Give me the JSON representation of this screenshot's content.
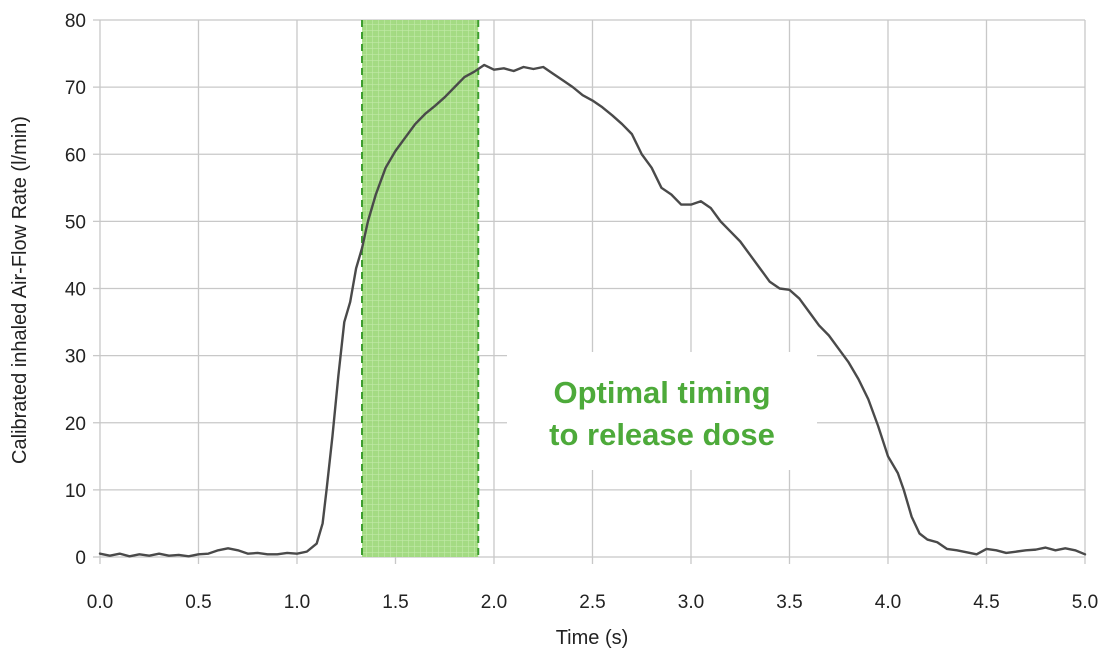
{
  "chart_data": {
    "type": "line",
    "title": "",
    "xlabel": "Time (s)",
    "ylabel": "Calibrated inhaled Air-Flow Rate (l/min)",
    "xlim": [
      0,
      5
    ],
    "ylim": [
      0,
      80
    ],
    "x_ticks": [
      "0.0",
      "0.5",
      "1.0",
      "1.5",
      "2.0",
      "2.5",
      "3.0",
      "3.5",
      "4.0",
      "4.5",
      "5.0"
    ],
    "y_ticks": [
      "0",
      "10",
      "20",
      "30",
      "40",
      "50",
      "60",
      "70",
      "80"
    ],
    "grid": true,
    "highlight_band": {
      "x_start": 1.33,
      "x_end": 1.92,
      "color": "#8fd16a"
    },
    "annotation": {
      "lines": [
        "Optimal timing",
        "to release dose"
      ],
      "color": "#4daa3a"
    },
    "line_color": "#4a4a4a",
    "series": [
      {
        "name": "",
        "points": [
          [
            0.0,
            0.5
          ],
          [
            0.05,
            0.2
          ],
          [
            0.1,
            0.5
          ],
          [
            0.15,
            0.1
          ],
          [
            0.2,
            0.4
          ],
          [
            0.25,
            0.2
          ],
          [
            0.3,
            0.5
          ],
          [
            0.35,
            0.2
          ],
          [
            0.4,
            0.3
          ],
          [
            0.45,
            0.1
          ],
          [
            0.5,
            0.4
          ],
          [
            0.55,
            0.5
          ],
          [
            0.6,
            1.0
          ],
          [
            0.65,
            1.3
          ],
          [
            0.7,
            1.0
          ],
          [
            0.75,
            0.5
          ],
          [
            0.8,
            0.6
          ],
          [
            0.85,
            0.4
          ],
          [
            0.9,
            0.4
          ],
          [
            0.95,
            0.6
          ],
          [
            1.0,
            0.5
          ],
          [
            1.05,
            0.8
          ],
          [
            1.1,
            2.0
          ],
          [
            1.13,
            5.0
          ],
          [
            1.15,
            10.0
          ],
          [
            1.18,
            18.0
          ],
          [
            1.21,
            27.0
          ],
          [
            1.24,
            35.0
          ],
          [
            1.27,
            38.0
          ],
          [
            1.3,
            43.0
          ],
          [
            1.33,
            46.0
          ],
          [
            1.36,
            50.0
          ],
          [
            1.4,
            54.0
          ],
          [
            1.45,
            58.0
          ],
          [
            1.5,
            60.5
          ],
          [
            1.55,
            62.5
          ],
          [
            1.6,
            64.5
          ],
          [
            1.65,
            66.0
          ],
          [
            1.7,
            67.2
          ],
          [
            1.75,
            68.5
          ],
          [
            1.8,
            70.0
          ],
          [
            1.85,
            71.5
          ],
          [
            1.9,
            72.3
          ],
          [
            1.95,
            73.3
          ],
          [
            2.0,
            72.6
          ],
          [
            2.05,
            72.8
          ],
          [
            2.1,
            72.4
          ],
          [
            2.15,
            73.0
          ],
          [
            2.2,
            72.7
          ],
          [
            2.25,
            73.0
          ],
          [
            2.3,
            72.0
          ],
          [
            2.35,
            71.0
          ],
          [
            2.4,
            70.0
          ],
          [
            2.45,
            68.8
          ],
          [
            2.5,
            68.0
          ],
          [
            2.55,
            67.0
          ],
          [
            2.6,
            65.8
          ],
          [
            2.65,
            64.5
          ],
          [
            2.7,
            63.0
          ],
          [
            2.75,
            60.0
          ],
          [
            2.8,
            58.0
          ],
          [
            2.85,
            55.0
          ],
          [
            2.9,
            54.0
          ],
          [
            2.95,
            52.5
          ],
          [
            3.0,
            52.5
          ],
          [
            3.05,
            53.0
          ],
          [
            3.1,
            52.0
          ],
          [
            3.15,
            50.0
          ],
          [
            3.2,
            48.5
          ],
          [
            3.25,
            47.0
          ],
          [
            3.3,
            45.0
          ],
          [
            3.35,
            43.0
          ],
          [
            3.4,
            41.0
          ],
          [
            3.45,
            40.0
          ],
          [
            3.5,
            39.8
          ],
          [
            3.55,
            38.5
          ],
          [
            3.6,
            36.5
          ],
          [
            3.65,
            34.5
          ],
          [
            3.7,
            33.0
          ],
          [
            3.75,
            31.0
          ],
          [
            3.8,
            29.0
          ],
          [
            3.85,
            26.5
          ],
          [
            3.9,
            23.5
          ],
          [
            3.95,
            19.5
          ],
          [
            4.0,
            15.0
          ],
          [
            4.05,
            12.5
          ],
          [
            4.08,
            10.0
          ],
          [
            4.12,
            6.0
          ],
          [
            4.16,
            3.5
          ],
          [
            4.2,
            2.6
          ],
          [
            4.25,
            2.2
          ],
          [
            4.3,
            1.2
          ],
          [
            4.35,
            1.0
          ],
          [
            4.4,
            0.7
          ],
          [
            4.45,
            0.4
          ],
          [
            4.5,
            1.2
          ],
          [
            4.55,
            1.0
          ],
          [
            4.6,
            0.6
          ],
          [
            4.65,
            0.8
          ],
          [
            4.7,
            1.0
          ],
          [
            4.75,
            1.1
          ],
          [
            4.8,
            1.4
          ],
          [
            4.85,
            1.0
          ],
          [
            4.9,
            1.3
          ],
          [
            4.95,
            1.0
          ],
          [
            5.0,
            0.4
          ]
        ]
      }
    ]
  }
}
